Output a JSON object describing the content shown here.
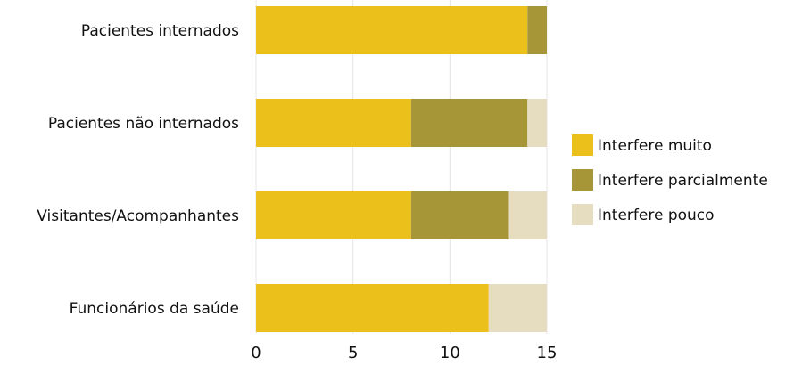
{
  "chart_data": {
    "type": "bar",
    "orientation": "horizontal",
    "stacked": true,
    "categories": [
      "Pacientes internados",
      "Pacientes não internados",
      "Visitantes/Acompanhantes",
      "Funcionários da saúde"
    ],
    "series": [
      {
        "name": "Interfere muito",
        "values": [
          14,
          8,
          8,
          12
        ],
        "color": "#ECC01B"
      },
      {
        "name": "Interfere parcialmente",
        "values": [
          1,
          6,
          5,
          0
        ],
        "color": "#A79638"
      },
      {
        "name": "Interfere pouco",
        "values": [
          0,
          1,
          2,
          3
        ],
        "color": "#E6DDC0"
      }
    ],
    "xlim": [
      0,
      15
    ],
    "xticks": [
      0,
      5,
      10,
      15
    ],
    "grid": true,
    "legend_position": "right"
  }
}
